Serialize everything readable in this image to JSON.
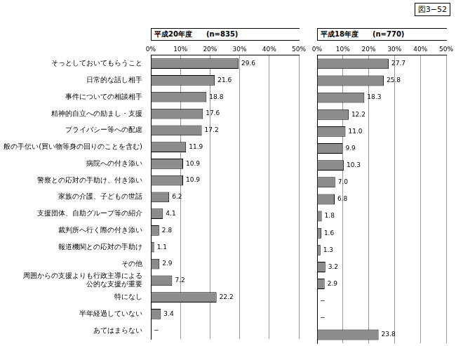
{
  "figure_label": "図3−52",
  "chart_data": [
    {
      "type": "bar",
      "title": "平成20年度　　(n=835)",
      "orientation": "horizontal",
      "categories": [
        "そっとしておいてもらうこと",
        "日常的な話し相手",
        "事件についての相談相手",
        "精神的自立への励まし・支援",
        "プライバシー等への配慮",
        "生活全般の手伝い(買い物等身の回りのことを含む)",
        "病院への付き添い",
        "警察との応対の手助け、付き添い",
        "家族の介護、子どもの世話",
        "支援団体、自助グループ等の紹介",
        "裁判所へ行く際の付き添い",
        "報道機関との応対の手助け",
        "その他",
        [
          "周囲からの支援よりも行政主導による",
          "公的な支援が重要"
        ],
        "特になし",
        "半年経過していない",
        "あてはまらない"
      ],
      "values": [
        29.6,
        21.6,
        18.8,
        17.6,
        17.2,
        11.9,
        10.9,
        10.9,
        6.2,
        4.1,
        2.8,
        1.1,
        2.9,
        7.2,
        22.2,
        3.4,
        null
      ],
      "value_labels": [
        "29.6",
        "21.6",
        "18.8",
        "17.6",
        "17.2",
        "11.9",
        "10.9",
        "10.9",
        "6.2",
        "4.1",
        "2.8",
        "1.1",
        "2.9",
        "7.2",
        "22.2",
        "3.4",
        "−"
      ],
      "color": "#8c8c8c",
      "data_labels": true,
      "grid": true,
      "xlim": [
        0,
        50
      ],
      "xticks": [
        {
          "value": 0,
          "label": "0%"
        },
        {
          "value": 10,
          "label": "10%"
        },
        {
          "value": 20,
          "label": "20%"
        },
        {
          "value": 30,
          "label": "30%"
        },
        {
          "value": 40,
          "label": "40%"
        },
        {
          "value": 50,
          "label": "50%"
        }
      ]
    },
    {
      "type": "bar",
      "title": "平成18年度　　(n=770)",
      "orientation": "horizontal",
      "tick_labels": "x",
      "categories": [
        "そっとしておいてもらうこと",
        "日常的な話し相手",
        "事件についての相談相手",
        "精神的自立への励まし・支援",
        "プライバシー等への配慮",
        "生活全般の手伝い(買い物等身の回りのことを含む)",
        "病院への付き添い",
        "警察との応対の手助け、付き添い",
        "家族の介護、子どもの世話",
        "支援団体、自助グループ等の紹介",
        "裁判所へ行く際の付き添い",
        "報道機関との応対の手助け",
        "その他",
        [
          "周囲からの支援よりも行政主導による",
          "公的な支援が重要"
        ],
        "特になし",
        "半年経過していない",
        "あてはまらない"
      ],
      "values": [
        27.7,
        25.8,
        18.3,
        12.2,
        11.0,
        9.9,
        10.3,
        7.0,
        6.8,
        1.8,
        1.6,
        1.3,
        3.2,
        2.9,
        null,
        null,
        23.8
      ],
      "value_labels": [
        "27.7",
        "25.8",
        "18.3",
        "12.2",
        "11.0",
        "9.9",
        "10.3",
        "7.0",
        "6.8",
        "1.8",
        "1.6",
        "1.3",
        "3.2",
        "2.9",
        "−",
        "−",
        "23.8"
      ],
      "color": "#8c8c8c",
      "data_labels": true,
      "grid": true,
      "xlim": [
        0,
        50
      ],
      "xticks": [
        {
          "value": 0,
          "label": "0%"
        },
        {
          "value": 10,
          "label": "10%"
        },
        {
          "value": 20,
          "label": "20%"
        },
        {
          "value": 30,
          "label": "30%"
        },
        {
          "value": 40,
          "label": "40%"
        },
        {
          "value": 50,
          "label": "50%"
        }
      ]
    }
  ]
}
